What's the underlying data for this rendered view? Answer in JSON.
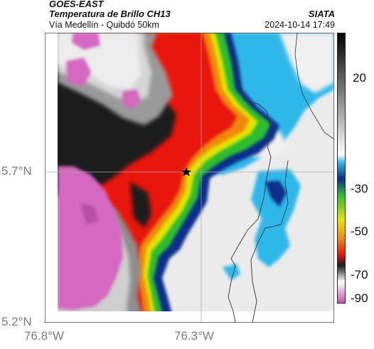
{
  "header": {
    "title_line1": "GOES-EAST",
    "title_line2": "Temperatura de Brillo CH13",
    "subtitle": "Vía Medellín - Quibdó 50km",
    "agency": "SIATA",
    "timestamp": "2024-10-14 17:49"
  },
  "axes": {
    "y_ticks": [
      "5.7°N",
      "5.2°N"
    ],
    "x_ticks": [
      "76.8°W",
      "76.3°W"
    ]
  },
  "colorbar": {
    "ticks": [
      "20",
      "-30",
      "-50",
      "-70",
      "-90"
    ]
  },
  "colors": {
    "magenta": "#d36bbf",
    "black": "#1a1a1a",
    "red": "#e8150c",
    "orange": "#f08a10",
    "yellow": "#e6e400",
    "green": "#2ebd2e",
    "blue": "#0b2e8a",
    "cyan": "#26b6e8",
    "light_gray": "#ececec"
  },
  "marker_icon": "star-icon"
}
